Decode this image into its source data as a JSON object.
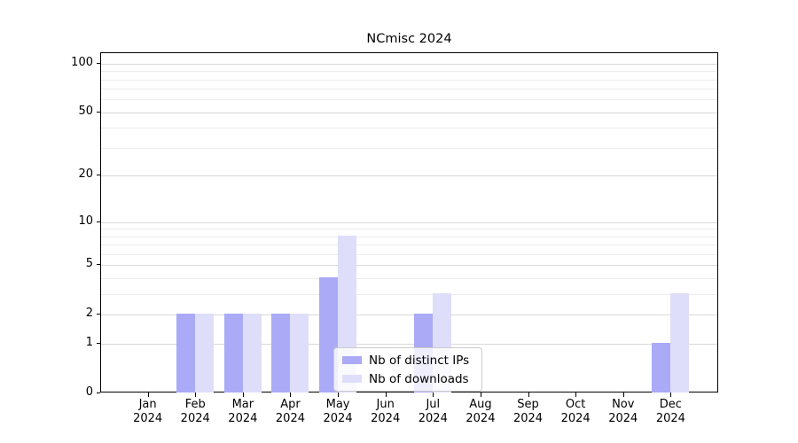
{
  "chart_data": {
    "type": "bar",
    "title": "NCmisc 2024",
    "categories": [
      "Jan",
      "Feb",
      "Mar",
      "Apr",
      "May",
      "Jun",
      "Jul",
      "Aug",
      "Sep",
      "Oct",
      "Nov",
      "Dec"
    ],
    "category_year": "2024",
    "series": [
      {
        "name": "Nb of distinct IPs",
        "color": "#aaaaf6",
        "values": [
          0,
          2,
          2,
          2,
          4,
          0,
          2,
          0,
          0,
          0,
          0,
          1
        ]
      },
      {
        "name": "Nb of downloads",
        "color": "#dedefa",
        "values": [
          0,
          2,
          2,
          2,
          8,
          0,
          3,
          0,
          0,
          0,
          0,
          3
        ]
      }
    ],
    "yscale": "log10(1+v)",
    "y_major_ticks": [
      0,
      1,
      2,
      5,
      10,
      20,
      50,
      100
    ],
    "y_minor_ticks": [
      3,
      4,
      6,
      7,
      8,
      9,
      30,
      40,
      60,
      70,
      80,
      90
    ],
    "ylim": [
      0,
      116
    ],
    "xlabel": "",
    "ylabel": "",
    "grid": "horizontal",
    "legend_position": "inside lower center"
  },
  "colors": {
    "bar_ips": "#aaaaf6",
    "bar_downloads": "#dedefa",
    "grid_major": "#d9d9d9",
    "grid_minor": "#ececec",
    "axis": "#000000",
    "legend_border": "#cccccc",
    "background": "#ffffff"
  },
  "legend": {
    "items": [
      {
        "label": "Nb of distinct IPs"
      },
      {
        "label": "Nb of downloads"
      }
    ]
  }
}
